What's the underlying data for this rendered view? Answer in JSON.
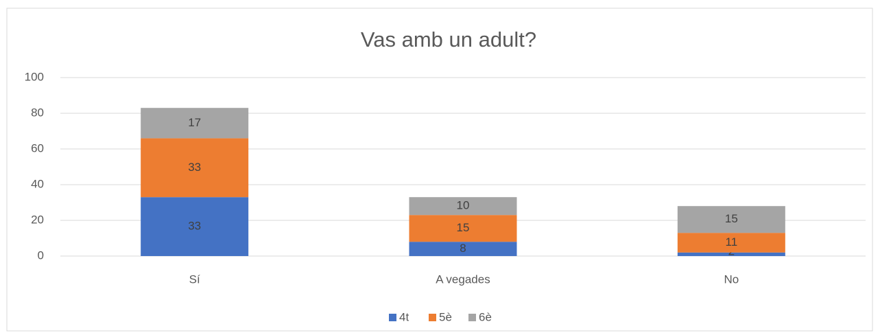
{
  "chart_data": {
    "type": "stacked_bar",
    "title": "Vas amb un adult?",
    "categories": [
      "Sí",
      "A vegades",
      "No"
    ],
    "series": [
      {
        "name": "4t",
        "color": "#4472c4",
        "values": [
          33,
          8,
          2
        ]
      },
      {
        "name": "5è",
        "color": "#ed7d31",
        "values": [
          33,
          15,
          11
        ]
      },
      {
        "name": "6è",
        "color": "#a5a5a5",
        "values": [
          17,
          10,
          15
        ]
      }
    ],
    "ylim": [
      0,
      100
    ],
    "yticks": [
      0,
      20,
      40,
      60,
      80,
      100
    ],
    "grid": true,
    "legend": "bottom"
  }
}
